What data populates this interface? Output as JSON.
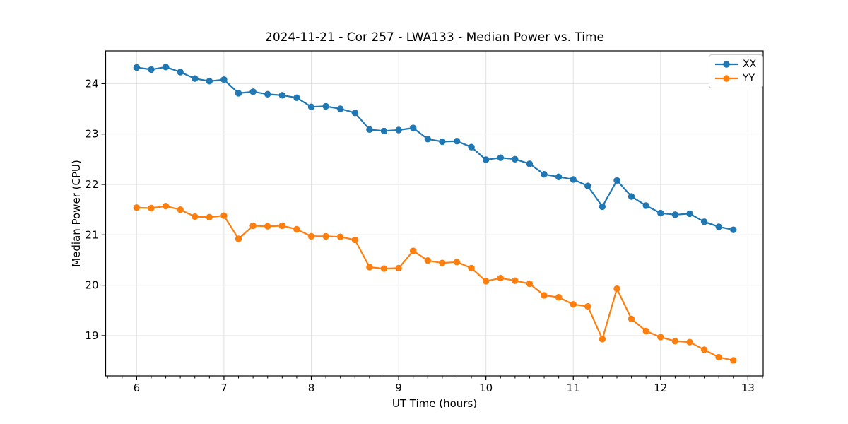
{
  "figure": {
    "title": "2024-11-21 - Cor 257 - LWA133 - Median Power vs. Time",
    "xlabel": "UT Time (hours)",
    "ylabel": "Median Power (CPU)"
  },
  "chart_data": {
    "type": "line",
    "title": "2024-11-21 - Cor 257 - LWA133 - Median Power vs. Time",
    "xlabel": "UT Time (hours)",
    "ylabel": "Median Power (CPU)",
    "x": [
      6.0,
      6.1667,
      6.3333,
      6.5,
      6.6667,
      6.8333,
      7.0,
      7.1667,
      7.3333,
      7.5,
      7.6667,
      7.8333,
      8.0,
      8.1667,
      8.3333,
      8.5,
      8.6667,
      8.8333,
      9.0,
      9.1667,
      9.3333,
      9.5,
      9.6667,
      9.8333,
      10.0,
      10.1667,
      10.3333,
      10.5,
      10.6667,
      10.8333,
      11.0,
      11.1667,
      11.3333,
      11.5,
      11.6667,
      11.8333,
      12.0,
      12.1667,
      12.3333,
      12.5,
      12.6667,
      12.8333
    ],
    "series": [
      {
        "name": "XX",
        "color": "#1f77b4",
        "values": [
          24.32,
          24.28,
          24.33,
          24.23,
          24.1,
          24.05,
          24.08,
          23.81,
          23.84,
          23.79,
          23.77,
          23.72,
          23.54,
          23.55,
          23.5,
          23.42,
          23.09,
          23.06,
          23.08,
          23.12,
          22.9,
          22.85,
          22.86,
          22.74,
          22.49,
          22.53,
          22.5,
          22.41,
          22.2,
          22.15,
          22.1,
          21.97,
          21.56,
          22.08,
          21.76,
          21.58,
          21.43,
          21.4,
          21.42,
          21.26,
          21.16,
          21.1
        ]
      },
      {
        "name": "YY",
        "color": "#ff7f0e",
        "values": [
          21.54,
          21.53,
          21.57,
          21.5,
          21.36,
          21.35,
          21.38,
          20.92,
          21.18,
          21.17,
          21.18,
          21.11,
          20.97,
          20.97,
          20.96,
          20.9,
          20.36,
          20.33,
          20.34,
          20.68,
          20.49,
          20.44,
          20.46,
          20.34,
          20.08,
          20.14,
          20.09,
          20.03,
          19.8,
          19.76,
          19.62,
          19.58,
          18.93,
          19.93,
          19.33,
          19.09,
          18.97,
          18.89,
          18.87,
          18.72,
          18.57,
          18.51
        ]
      }
    ],
    "xlim": [
      5.645,
      13.175
    ],
    "ylim": [
      18.2,
      24.65
    ],
    "xticks": [
      6,
      7,
      8,
      9,
      10,
      11,
      12,
      13
    ],
    "yticks": [
      19,
      20,
      21,
      22,
      23,
      24
    ],
    "x_minor_step": 0.16667,
    "grid": true,
    "legend_position": "upper right",
    "marker": "o",
    "grid_color": "#e2e2e2",
    "spine_color": "#000000"
  }
}
